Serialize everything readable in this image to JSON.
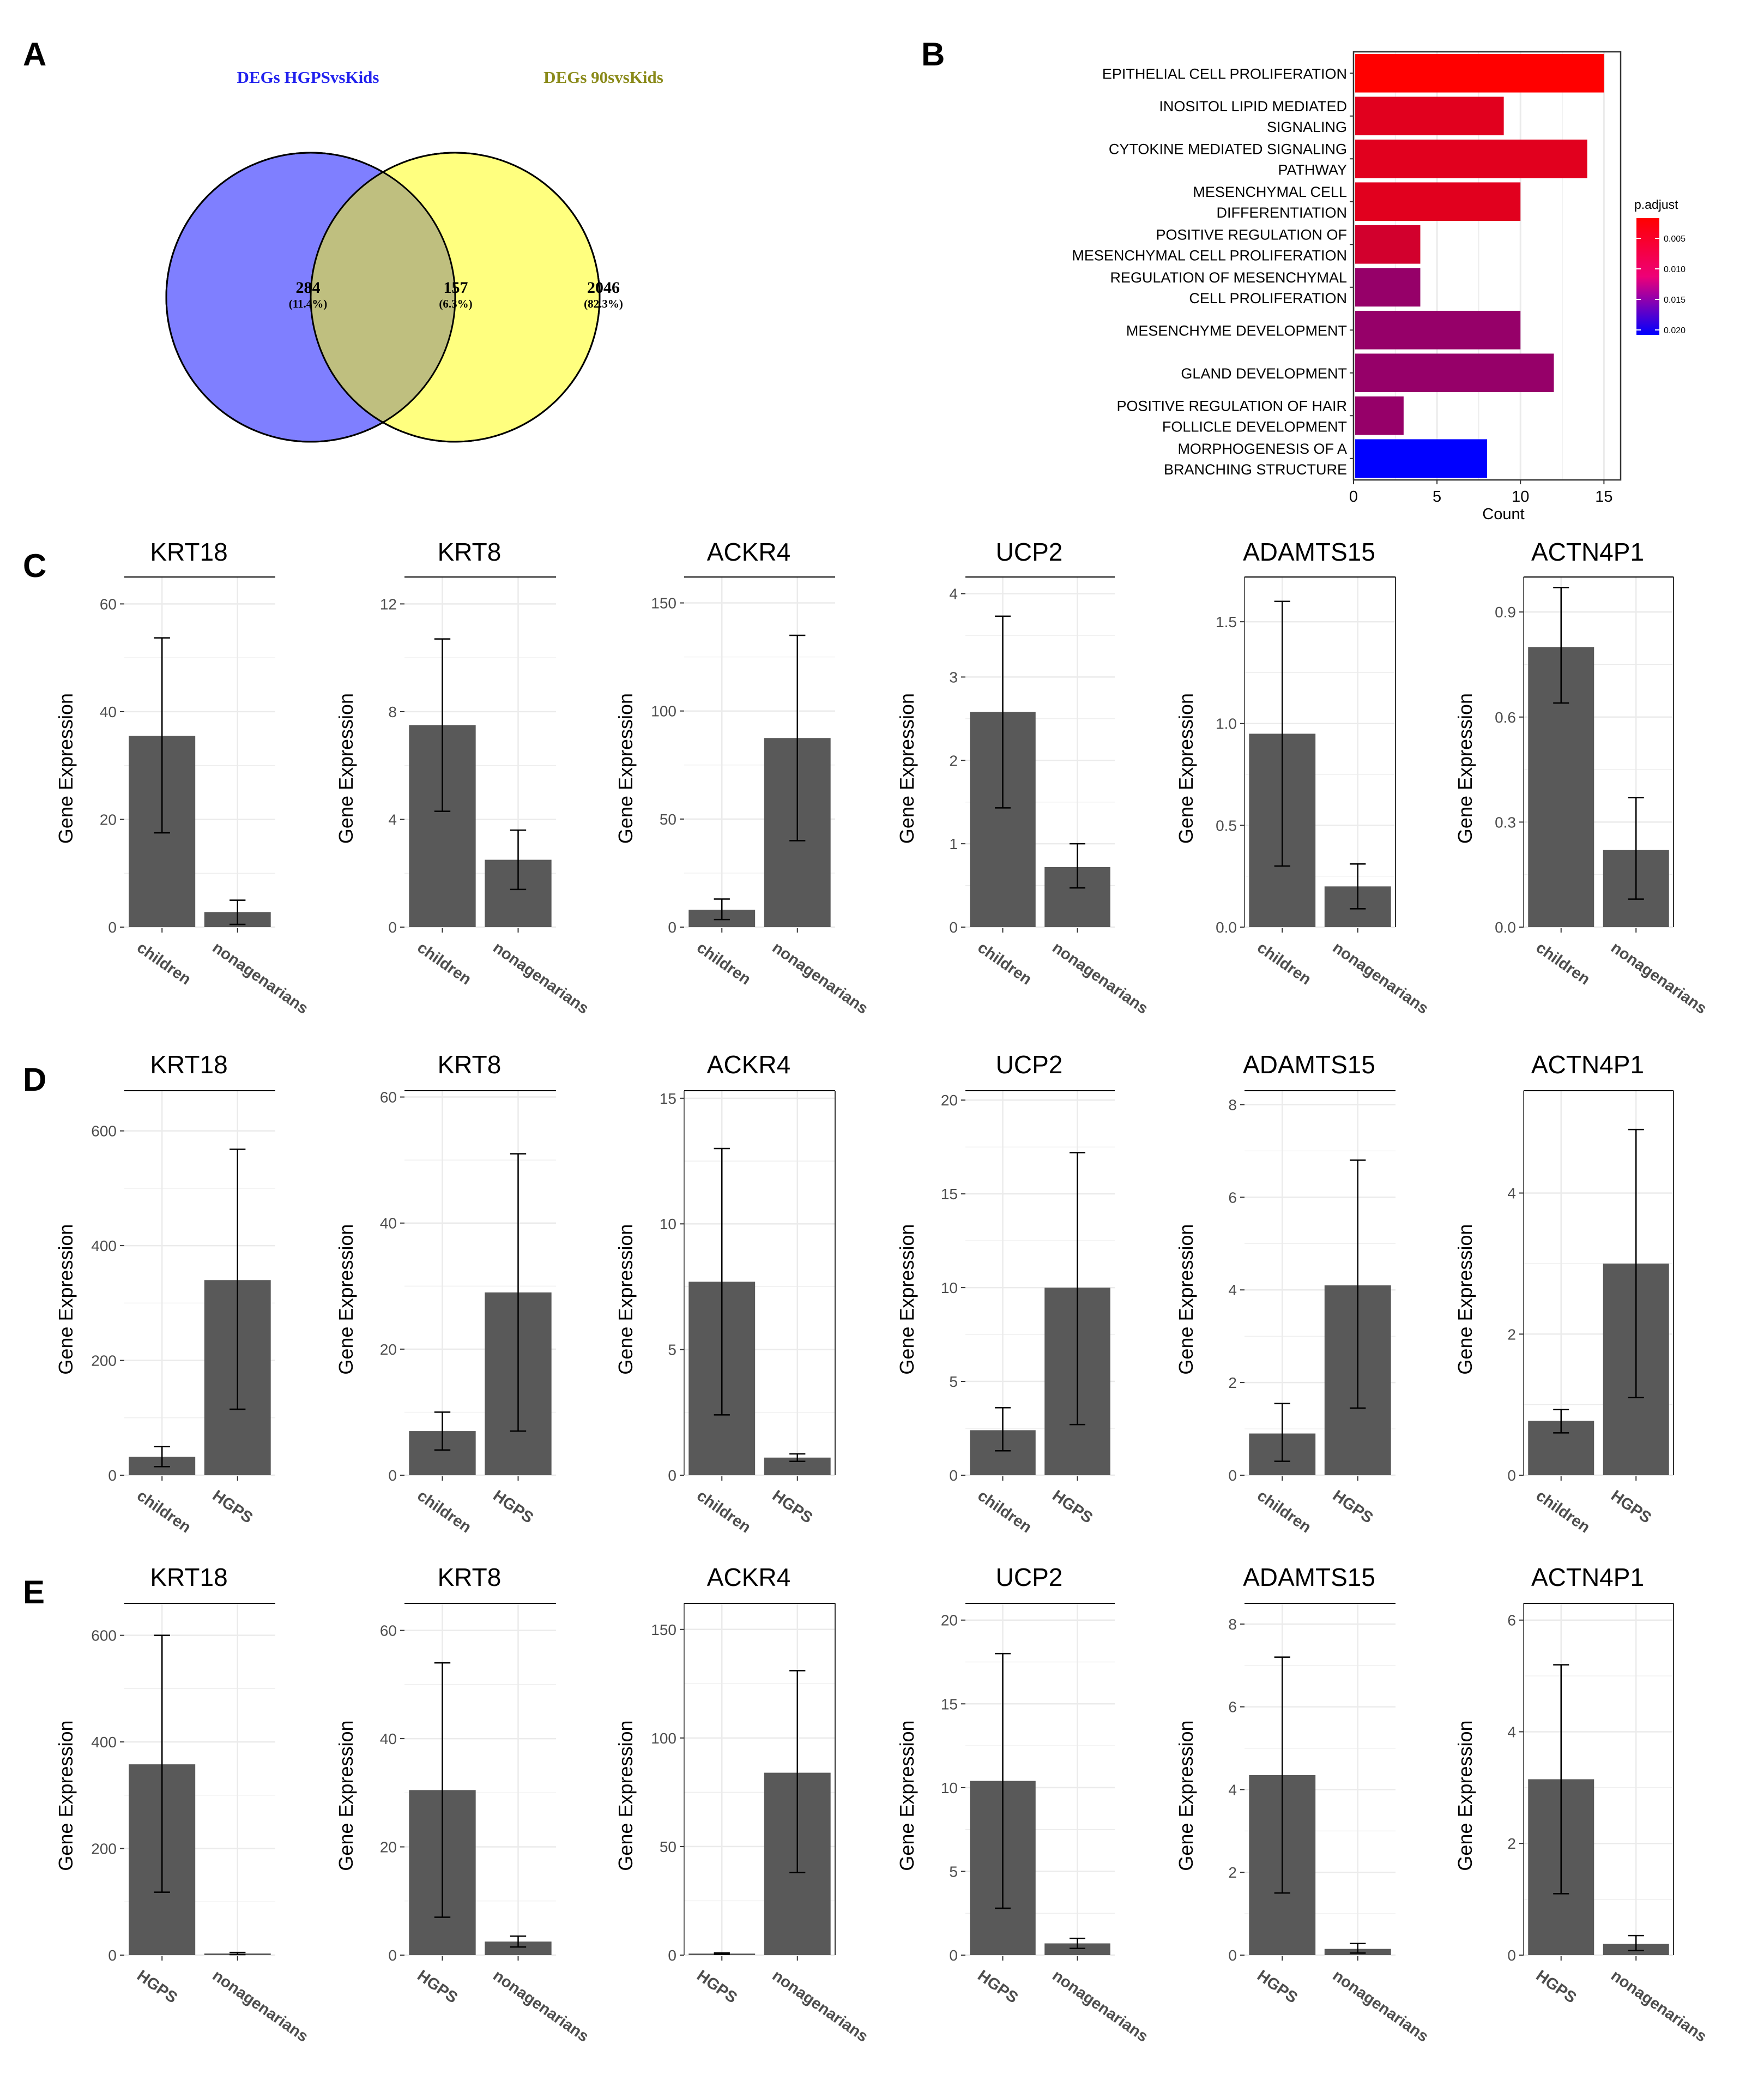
{
  "panels": {
    "A": {
      "label": "A",
      "venn": {
        "left_title": "DEGs HGPSvsKids",
        "right_title": "DEGs 90svsKids",
        "left_only": "284",
        "left_only_pct": "(11.4%)",
        "overlap": "157",
        "overlap_pct": "(6.3%)",
        "right_only": "2046",
        "right_only_pct": "(82.3%)",
        "left_color": "#7f7fff",
        "right_color": "#ffff7f",
        "overlap_color": "#bfbf7f",
        "left_title_color": "#2222ee",
        "right_title_color": "#8a8a1a"
      }
    },
    "B": {
      "label": "B"
    },
    "C": {
      "label": "C"
    },
    "D": {
      "label": "D"
    },
    "E": {
      "label": "E"
    }
  },
  "colors": {
    "bar": "#595959",
    "grid": "#ebebeb",
    "axis": "#333333"
  },
  "chart_data": [
    {
      "id": "B",
      "type": "bar",
      "orientation": "horizontal",
      "xlabel": "Count",
      "xlim": [
        0,
        16
      ],
      "xticks": [
        0,
        5,
        10,
        15
      ],
      "legend_title": "p.adjust",
      "legend_ticks": [
        "0.005",
        "0.010",
        "0.015",
        "0.020"
      ],
      "legend_placement": "right",
      "color_low": "#ff0000",
      "color_high": "#0000ff",
      "categories": [
        [
          "EPITHELIAL CELL PROLIFERATION"
        ],
        [
          "INOSITOL LIPID MEDIATED",
          "SIGNALING"
        ],
        [
          "CYTOKINE MEDIATED SIGNALING",
          "PATHWAY"
        ],
        [
          "MESENCHYMAL CELL",
          "DIFFERENTIATION"
        ],
        [
          "POSITIVE REGULATION OF",
          "MESENCHYMAL CELL PROLIFERATION"
        ],
        [
          "REGULATION OF MESENCHYMAL",
          "CELL PROLIFERATION"
        ],
        [
          "MESENCHYME DEVELOPMENT"
        ],
        [
          "GLAND DEVELOPMENT"
        ],
        [
          "POSITIVE REGULATION OF HAIR",
          "FOLLICLE DEVELOPMENT"
        ],
        [
          "MORPHOGENESIS OF A",
          "BRANCHING STRUCTURE"
        ]
      ],
      "values": [
        15,
        9,
        14,
        10,
        4,
        4,
        10,
        12,
        3,
        8
      ],
      "p_adjust": [
        0.004,
        0.006,
        0.006,
        0.006,
        0.007,
        0.011,
        0.011,
        0.011,
        0.011,
        0.021
      ]
    },
    {
      "id": "C",
      "type": "bar_grid",
      "ylabel": "Gene Expression",
      "charts": [
        {
          "title": "KRT18",
          "categories": [
            "children",
            "nonagenarians"
          ],
          "values": [
            35.5,
            2.8
          ],
          "err_lo": [
            17.5,
            0.5
          ],
          "err_hi": [
            53.7,
            5.0
          ],
          "ylim": [
            0,
            65
          ],
          "yticks": [
            0,
            20,
            40,
            60
          ],
          "frame": false
        },
        {
          "title": "KRT8",
          "categories": [
            "children",
            "nonagenarians"
          ],
          "values": [
            7.5,
            2.5
          ],
          "err_lo": [
            4.3,
            1.4
          ],
          "err_hi": [
            10.7,
            3.6
          ],
          "ylim": [
            0,
            13
          ],
          "yticks": [
            0,
            4,
            8,
            12
          ],
          "frame": false
        },
        {
          "title": "ACKR4",
          "categories": [
            "children",
            "nonagenarians"
          ],
          "values": [
            8,
            87.5
          ],
          "err_lo": [
            3.5,
            40
          ],
          "err_hi": [
            13,
            135
          ],
          "ylim": [
            0,
            162
          ],
          "yticks": [
            0,
            50,
            100,
            150
          ],
          "frame": false
        },
        {
          "title": "UCP2",
          "categories": [
            "children",
            "nonagenarians"
          ],
          "values": [
            2.58,
            0.72
          ],
          "err_lo": [
            1.43,
            0.47
          ],
          "err_hi": [
            3.73,
            1.0
          ],
          "ylim": [
            0,
            4.2
          ],
          "yticks": [
            0,
            1,
            2,
            3,
            4
          ],
          "frame": false
        },
        {
          "title": "ADAMTS15",
          "categories": [
            "children",
            "nonagenarians"
          ],
          "values": [
            0.95,
            0.2
          ],
          "err_lo": [
            0.3,
            0.09
          ],
          "err_hi": [
            1.6,
            0.31
          ],
          "ylim": [
            0,
            1.72
          ],
          "yticks": [
            0.0,
            0.5,
            1.0,
            1.5
          ],
          "ytick_labels": [
            "0.0",
            "0.5",
            "1.0",
            "1.5"
          ],
          "frame": true
        },
        {
          "title": "ACTN4P1",
          "categories": [
            "children",
            "nonagenarians"
          ],
          "values": [
            0.8,
            0.22
          ],
          "err_lo": [
            0.64,
            0.08
          ],
          "err_hi": [
            0.97,
            0.37
          ],
          "ylim": [
            0,
            1.0
          ],
          "yticks": [
            0.0,
            0.3,
            0.6,
            0.9
          ],
          "ytick_labels": [
            "0.0",
            "0.3",
            "0.6",
            "0.9"
          ],
          "frame": true
        }
      ]
    },
    {
      "id": "D",
      "type": "bar_grid",
      "ylabel": "Gene Expression",
      "charts": [
        {
          "title": "KRT18",
          "categories": [
            "children",
            "HGPS"
          ],
          "values": [
            32,
            340
          ],
          "err_lo": [
            15,
            115
          ],
          "err_hi": [
            50,
            568
          ],
          "ylim": [
            0,
            670
          ],
          "yticks": [
            0,
            200,
            400,
            600
          ],
          "frame": false
        },
        {
          "title": "KRT8",
          "categories": [
            "children",
            "HGPS"
          ],
          "values": [
            7,
            29
          ],
          "err_lo": [
            4,
            7
          ],
          "err_hi": [
            10,
            51
          ],
          "ylim": [
            0,
            61
          ],
          "yticks": [
            0,
            20,
            40,
            60
          ],
          "frame": false
        },
        {
          "title": "ACKR4",
          "categories": [
            "children",
            "HGPS"
          ],
          "values": [
            7.7,
            0.7
          ],
          "err_lo": [
            2.4,
            0.55
          ],
          "err_hi": [
            13,
            0.85
          ],
          "ylim": [
            0,
            15.3
          ],
          "yticks": [
            0,
            5,
            10,
            15
          ],
          "frame": true
        },
        {
          "title": "UCP2",
          "categories": [
            "children",
            "HGPS"
          ],
          "values": [
            2.4,
            10
          ],
          "err_lo": [
            1.3,
            2.7
          ],
          "err_hi": [
            3.6,
            17.2
          ],
          "ylim": [
            0,
            20.5
          ],
          "yticks": [
            0,
            5,
            10,
            15,
            20
          ],
          "frame": false
        },
        {
          "title": "ADAMTS15",
          "categories": [
            "children",
            "HGPS"
          ],
          "values": [
            0.9,
            4.1
          ],
          "err_lo": [
            0.3,
            1.45
          ],
          "err_hi": [
            1.55,
            6.8
          ],
          "ylim": [
            0,
            8.3
          ],
          "yticks": [
            0,
            2,
            4,
            6,
            8
          ],
          "frame": false
        },
        {
          "title": "ACTN4P1",
          "categories": [
            "children",
            "HGPS"
          ],
          "values": [
            0.77,
            3.0
          ],
          "err_lo": [
            0.6,
            1.1
          ],
          "err_hi": [
            0.93,
            4.9
          ],
          "ylim": [
            0,
            5.45
          ],
          "yticks": [
            0,
            2,
            4
          ],
          "frame": true
        }
      ]
    },
    {
      "id": "E",
      "type": "bar_grid",
      "ylabel": "Gene Expression",
      "charts": [
        {
          "title": "KRT18",
          "categories": [
            "HGPS",
            "nonagenarians"
          ],
          "values": [
            358,
            3
          ],
          "err_lo": [
            118,
            1
          ],
          "err_hi": [
            600,
            5
          ],
          "ylim": [
            0,
            660
          ],
          "yticks": [
            0,
            200,
            400,
            600
          ],
          "frame": false
        },
        {
          "title": "KRT8",
          "categories": [
            "HGPS",
            "nonagenarians"
          ],
          "values": [
            30.5,
            2.5
          ],
          "err_lo": [
            7,
            1.5
          ],
          "err_hi": [
            54,
            3.5
          ],
          "ylim": [
            0,
            65
          ],
          "yticks": [
            0,
            20,
            40,
            60
          ],
          "frame": false
        },
        {
          "title": "ACKR4",
          "categories": [
            "HGPS",
            "nonagenarians"
          ],
          "values": [
            0.7,
            84
          ],
          "err_lo": [
            0.4,
            38
          ],
          "err_hi": [
            1.0,
            131
          ],
          "ylim": [
            0,
            162
          ],
          "yticks": [
            0,
            50,
            100,
            150
          ],
          "frame": true
        },
        {
          "title": "UCP2",
          "categories": [
            "HGPS",
            "nonagenarians"
          ],
          "values": [
            10.4,
            0.7
          ],
          "err_lo": [
            2.8,
            0.4
          ],
          "err_hi": [
            18,
            1.0
          ],
          "ylim": [
            0,
            21
          ],
          "yticks": [
            0,
            5,
            10,
            15,
            20
          ],
          "frame": false
        },
        {
          "title": "ADAMTS15",
          "categories": [
            "HGPS",
            "nonagenarians"
          ],
          "values": [
            4.35,
            0.15
          ],
          "err_lo": [
            1.5,
            0.05
          ],
          "err_hi": [
            7.2,
            0.28
          ],
          "ylim": [
            0,
            8.5
          ],
          "yticks": [
            0,
            2,
            4,
            6,
            8
          ],
          "frame": false
        },
        {
          "title": "ACTN4P1",
          "categories": [
            "HGPS",
            "nonagenarians"
          ],
          "values": [
            3.15,
            0.2
          ],
          "err_lo": [
            1.1,
            0.08
          ],
          "err_hi": [
            5.2,
            0.35
          ],
          "ylim": [
            0,
            6.3
          ],
          "yticks": [
            0,
            2,
            4,
            6
          ],
          "frame": true
        }
      ]
    }
  ]
}
